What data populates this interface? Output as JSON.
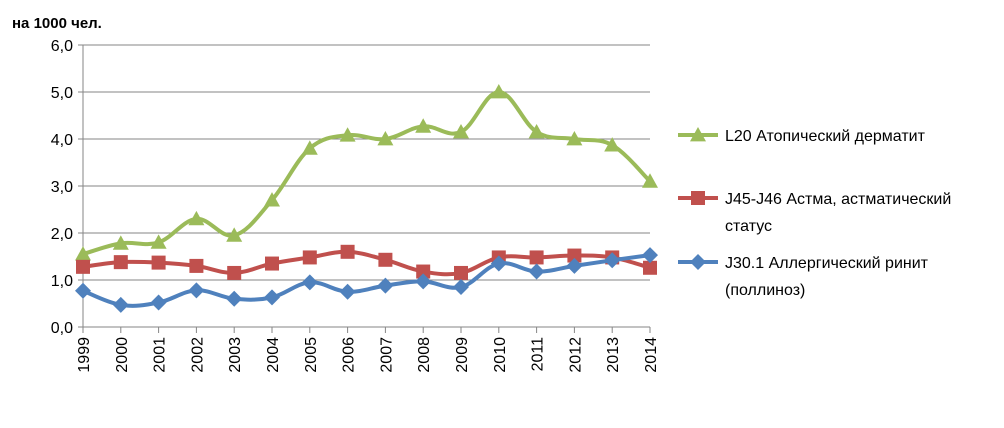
{
  "chart_data": {
    "type": "line",
    "unit_label": "на 1000 чел.",
    "x": [
      "1999",
      "2000",
      "2001",
      "2002",
      "2003",
      "2004",
      "2005",
      "2006",
      "2007",
      "2008",
      "2009",
      "2010",
      "2011",
      "2012",
      "2013",
      "2014"
    ],
    "ylim": [
      0,
      6
    ],
    "y_ticks": [
      "0,0",
      "1,0",
      "2,0",
      "3,0",
      "4,0",
      "5,0",
      "6,0"
    ],
    "grid": true,
    "legend_position": "right",
    "series": [
      {
        "name_lines": [
          "L20 Атопический дерматит"
        ],
        "color": "#9BBB59",
        "marker": "triangle",
        "values": [
          1.55,
          1.78,
          1.8,
          2.3,
          1.95,
          2.7,
          3.8,
          4.08,
          4.0,
          4.27,
          4.15,
          5.0,
          4.15,
          4.0,
          3.87,
          3.1
        ]
      },
      {
        "name_lines": [
          "J45-J46 Астма, астматический",
          "статус"
        ],
        "color": "#C0504D",
        "marker": "square",
        "values": [
          1.28,
          1.38,
          1.37,
          1.3,
          1.15,
          1.35,
          1.48,
          1.6,
          1.43,
          1.18,
          1.15,
          1.48,
          1.48,
          1.52,
          1.48,
          1.26
        ]
      },
      {
        "name_lines": [
          "J30.1 Аллергический ринит",
          "(поллиноз)"
        ],
        "color": "#4F81BD",
        "marker": "diamond",
        "values": [
          0.77,
          0.47,
          0.52,
          0.78,
          0.6,
          0.63,
          0.95,
          0.75,
          0.88,
          0.97,
          0.85,
          1.35,
          1.18,
          1.3,
          1.42,
          1.53
        ]
      }
    ]
  }
}
